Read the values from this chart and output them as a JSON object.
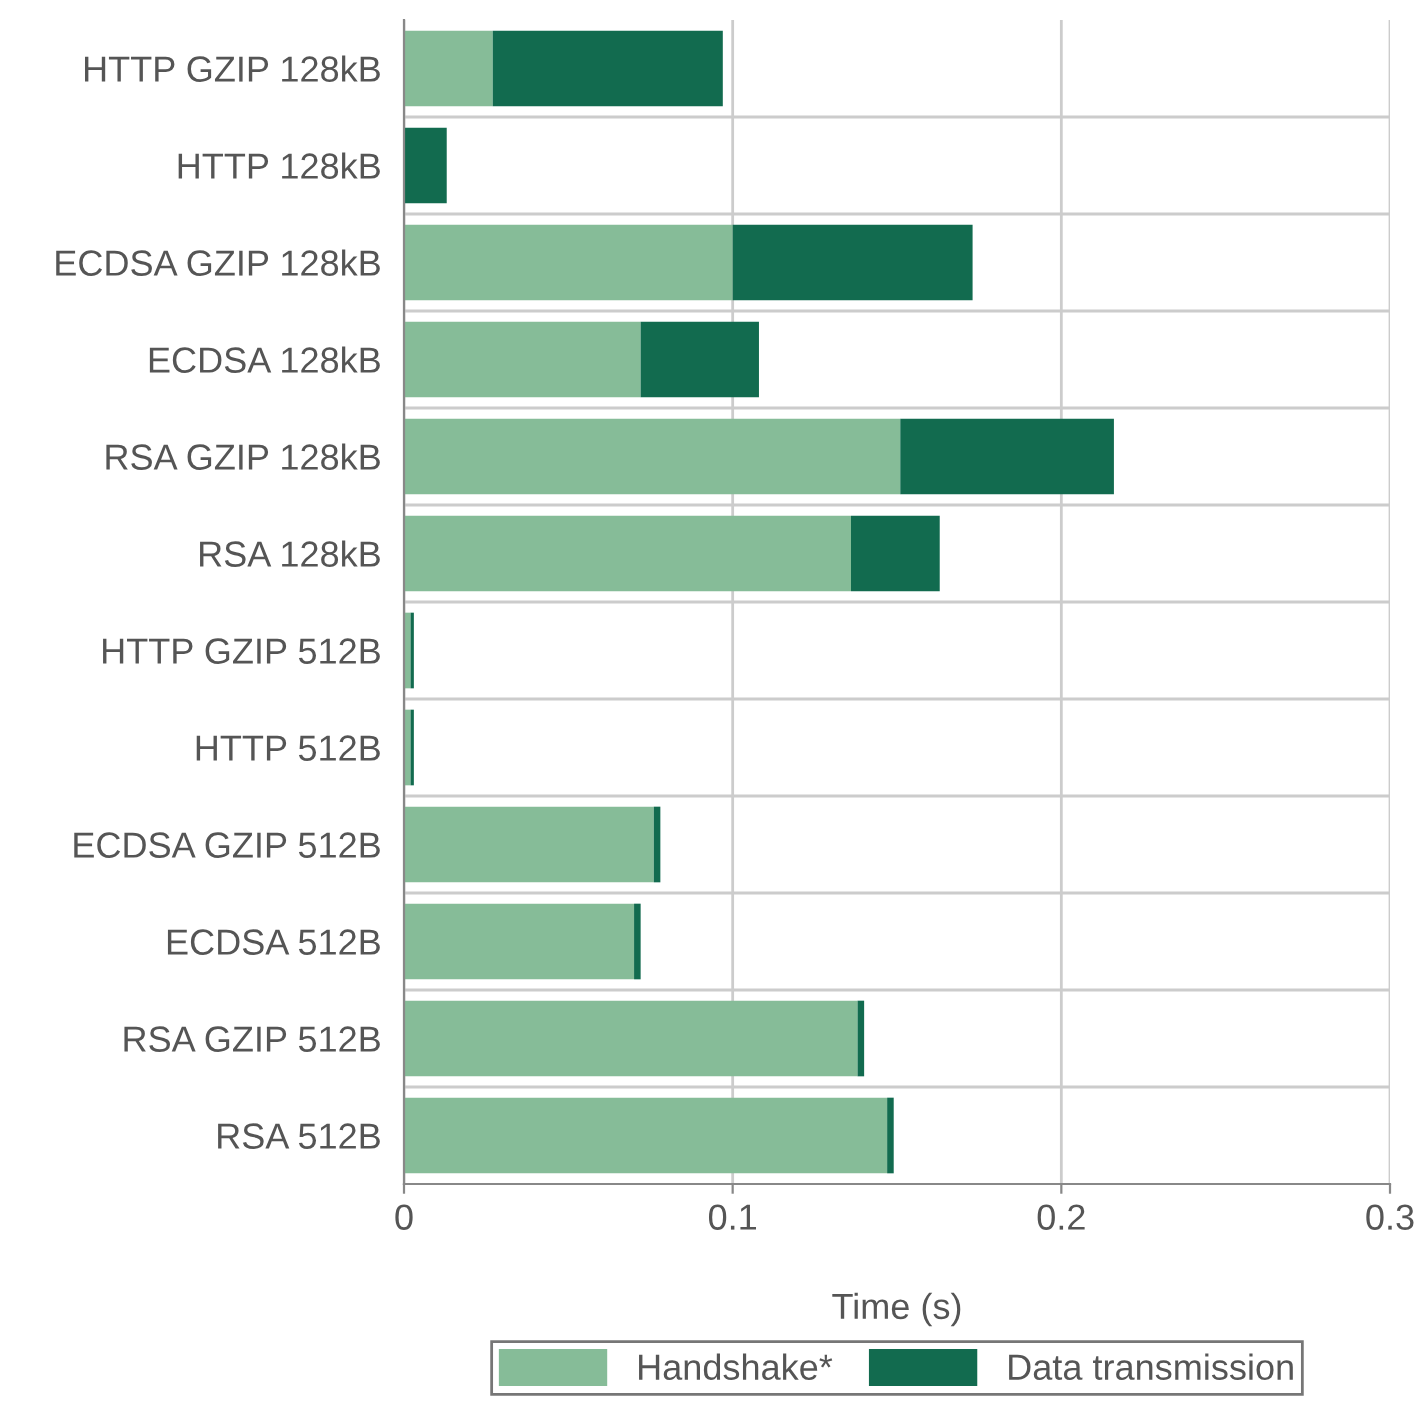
{
  "chart_data": {
    "type": "bar",
    "orientation": "horizontal",
    "stacked": true,
    "categories": [
      "HTTP GZIP 128kB",
      "HTTP 128kB",
      "ECDSA GZIP 128kB",
      "ECDSA 128kB",
      "RSA GZIP 128kB",
      "RSA 128kB",
      "HTTP GZIP 512B",
      "HTTP 512B",
      "ECDSA GZIP 512B",
      "ECDSA 512B",
      "RSA GZIP 512B",
      "RSA 512B"
    ],
    "series": [
      {
        "name": "Handshake*",
        "color": "#86bc98",
        "values": [
          0.027,
          null,
          0.1,
          0.072,
          0.151,
          0.136,
          0.002,
          0.002,
          0.076,
          0.07,
          0.138,
          0.147
        ]
      },
      {
        "name": "Data transmission",
        "color": "#126b4f",
        "values": [
          0.07,
          0.013,
          0.073,
          0.036,
          0.065,
          0.027,
          0.001,
          0.001,
          0.002,
          0.002,
          0.002,
          0.002
        ]
      }
    ],
    "xlabel": "Time (s)",
    "xlim": [
      0,
      0.3
    ],
    "xticks": [
      0,
      0.1,
      0.2,
      0.3
    ],
    "grid": true,
    "legend": "bottom"
  }
}
